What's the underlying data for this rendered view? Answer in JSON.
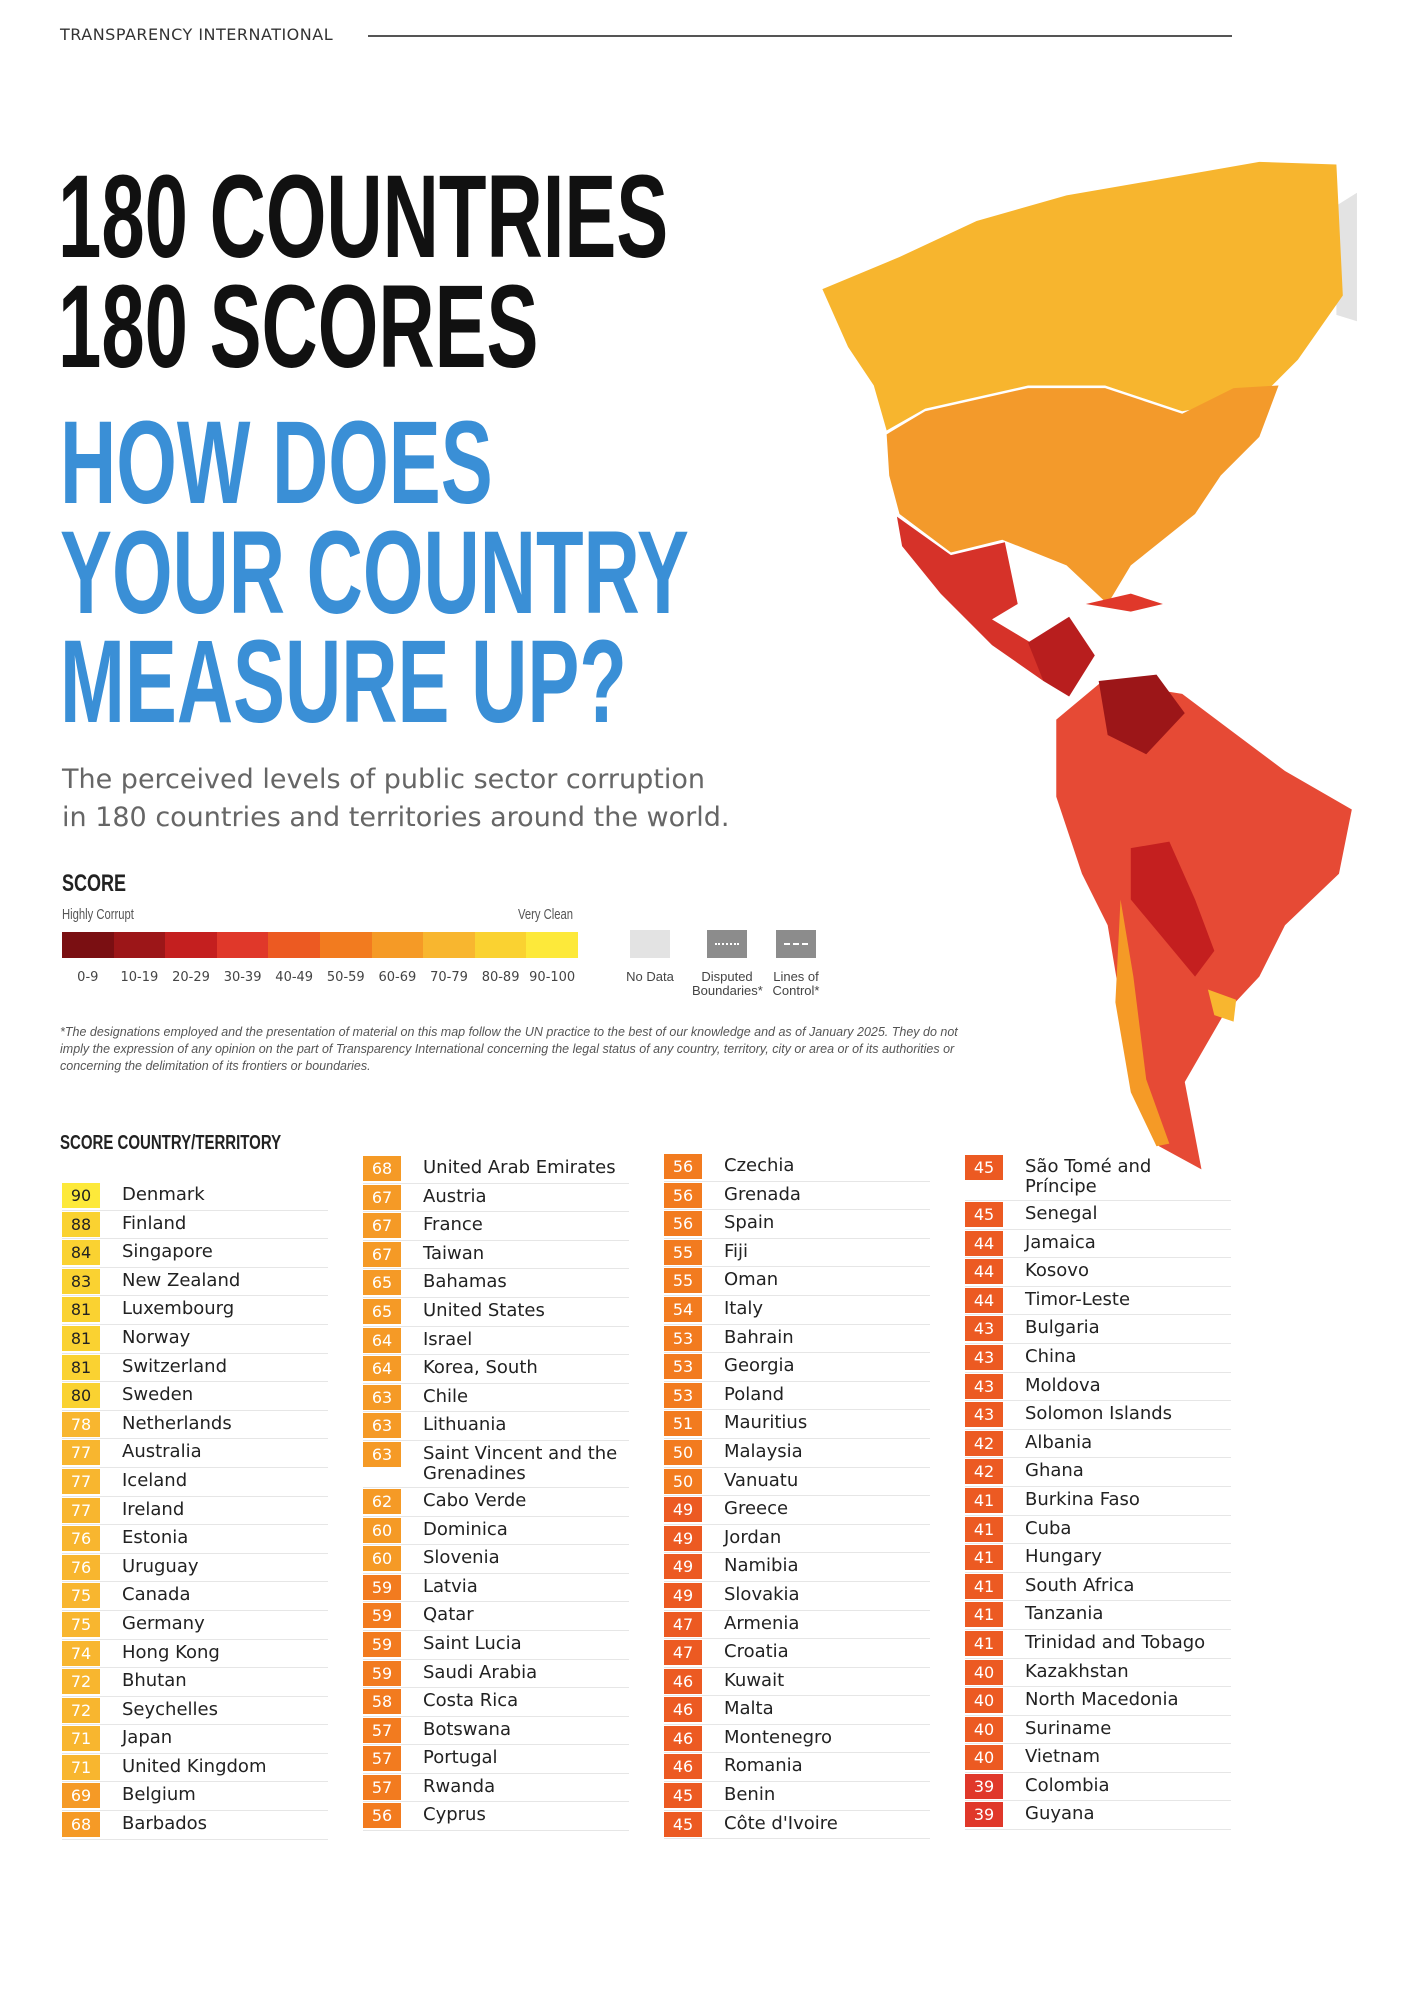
{
  "header": {
    "org": "TRANSPARENCY INTERNATIONAL"
  },
  "title": {
    "line1": "180 COUNTRIES",
    "line2": "180 SCORES"
  },
  "headline": [
    "HOW DOES",
    "YOUR COUNTRY",
    "MEASURE UP?"
  ],
  "subtitle": [
    "The perceived levels of public sector corruption",
    "in 180 countries and territories around the world."
  ],
  "legend": {
    "title": "SCORE",
    "low": "Highly Corrupt",
    "high": "Very Clean",
    "bins": [
      {
        "label": "0-9",
        "color": "#7a0f12"
      },
      {
        "label": "10-19",
        "color": "#9c1618"
      },
      {
        "label": "20-29",
        "color": "#c41f1f"
      },
      {
        "label": "30-39",
        "color": "#e0382a"
      },
      {
        "label": "40-49",
        "color": "#ec5a22"
      },
      {
        "label": "50-59",
        "color": "#f27b1f"
      },
      {
        "label": "60-69",
        "color": "#f59a26"
      },
      {
        "label": "70-79",
        "color": "#f8b62f"
      },
      {
        "label": "80-89",
        "color": "#fad231"
      },
      {
        "label": "90-100",
        "color": "#fde93a"
      }
    ],
    "extra": [
      {
        "label": "No Data",
        "color": "#e3e3e3"
      },
      {
        "label": "Disputed Boundaries*",
        "color": "#8c8c8c"
      },
      {
        "label": "Lines of Control*",
        "color": "#8c8c8c"
      }
    ]
  },
  "disclaimer": "*The designations employed and the presentation of material on this map follow the UN practice to the best of our knowledge and as of January 2025. They do not imply the expression of any opinion on the part of Transparency International concerning the legal status of any country, territory, city or area or of its authorities or concerning the delimitation of its frontiers or boundaries.",
  "table": {
    "header": "SCORE COUNTRY/TERRITORY",
    "columns": [
      [
        {
          "score": 90,
          "country": "Denmark"
        },
        {
          "score": 88,
          "country": "Finland"
        },
        {
          "score": 84,
          "country": "Singapore"
        },
        {
          "score": 83,
          "country": "New Zealand"
        },
        {
          "score": 81,
          "country": "Luxembourg"
        },
        {
          "score": 81,
          "country": "Norway"
        },
        {
          "score": 81,
          "country": "Switzerland"
        },
        {
          "score": 80,
          "country": "Sweden"
        },
        {
          "score": 78,
          "country": "Netherlands"
        },
        {
          "score": 77,
          "country": "Australia"
        },
        {
          "score": 77,
          "country": "Iceland"
        },
        {
          "score": 77,
          "country": "Ireland"
        },
        {
          "score": 76,
          "country": "Estonia"
        },
        {
          "score": 76,
          "country": "Uruguay"
        },
        {
          "score": 75,
          "country": "Canada"
        },
        {
          "score": 75,
          "country": "Germany"
        },
        {
          "score": 74,
          "country": "Hong Kong"
        },
        {
          "score": 72,
          "country": "Bhutan"
        },
        {
          "score": 72,
          "country": "Seychelles"
        },
        {
          "score": 71,
          "country": "Japan"
        },
        {
          "score": 71,
          "country": "United Kingdom"
        },
        {
          "score": 69,
          "country": "Belgium"
        },
        {
          "score": 68,
          "country": "Barbados"
        }
      ],
      [
        {
          "score": 68,
          "country": "United Arab Emirates"
        },
        {
          "score": 67,
          "country": "Austria"
        },
        {
          "score": 67,
          "country": "France"
        },
        {
          "score": 67,
          "country": "Taiwan"
        },
        {
          "score": 65,
          "country": "Bahamas"
        },
        {
          "score": 65,
          "country": "United States"
        },
        {
          "score": 64,
          "country": "Israel"
        },
        {
          "score": 64,
          "country": "Korea, South"
        },
        {
          "score": 63,
          "country": "Chile"
        },
        {
          "score": 63,
          "country": "Lithuania"
        },
        {
          "score": 63,
          "country": "Saint Vincent and the Grenadines"
        },
        {
          "score": 62,
          "country": "Cabo Verde"
        },
        {
          "score": 60,
          "country": "Dominica"
        },
        {
          "score": 60,
          "country": "Slovenia"
        },
        {
          "score": 59,
          "country": "Latvia"
        },
        {
          "score": 59,
          "country": "Qatar"
        },
        {
          "score": 59,
          "country": "Saint Lucia"
        },
        {
          "score": 59,
          "country": "Saudi Arabia"
        },
        {
          "score": 58,
          "country": "Costa Rica"
        },
        {
          "score": 57,
          "country": "Botswana"
        },
        {
          "score": 57,
          "country": "Portugal"
        },
        {
          "score": 57,
          "country": "Rwanda"
        },
        {
          "score": 56,
          "country": "Cyprus"
        }
      ],
      [
        {
          "score": 56,
          "country": "Czechia"
        },
        {
          "score": 56,
          "country": "Grenada"
        },
        {
          "score": 56,
          "country": "Spain"
        },
        {
          "score": 55,
          "country": "Fiji"
        },
        {
          "score": 55,
          "country": "Oman"
        },
        {
          "score": 54,
          "country": "Italy"
        },
        {
          "score": 53,
          "country": "Bahrain"
        },
        {
          "score": 53,
          "country": "Georgia"
        },
        {
          "score": 53,
          "country": "Poland"
        },
        {
          "score": 51,
          "country": "Mauritius"
        },
        {
          "score": 50,
          "country": "Malaysia"
        },
        {
          "score": 50,
          "country": "Vanuatu"
        },
        {
          "score": 49,
          "country": "Greece"
        },
        {
          "score": 49,
          "country": "Jordan"
        },
        {
          "score": 49,
          "country": "Namibia"
        },
        {
          "score": 49,
          "country": "Slovakia"
        },
        {
          "score": 47,
          "country": "Armenia"
        },
        {
          "score": 47,
          "country": "Croatia"
        },
        {
          "score": 46,
          "country": "Kuwait"
        },
        {
          "score": 46,
          "country": "Malta"
        },
        {
          "score": 46,
          "country": "Montenegro"
        },
        {
          "score": 46,
          "country": "Romania"
        },
        {
          "score": 45,
          "country": "Benin"
        },
        {
          "score": 45,
          "country": "Côte d'Ivoire"
        }
      ],
      [
        {
          "score": 45,
          "country": "São Tomé and Príncipe"
        },
        {
          "score": 45,
          "country": "Senegal"
        },
        {
          "score": 44,
          "country": "Jamaica"
        },
        {
          "score": 44,
          "country": "Kosovo"
        },
        {
          "score": 44,
          "country": "Timor-Leste"
        },
        {
          "score": 43,
          "country": "Bulgaria"
        },
        {
          "score": 43,
          "country": "China"
        },
        {
          "score": 43,
          "country": "Moldova"
        },
        {
          "score": 43,
          "country": "Solomon Islands"
        },
        {
          "score": 42,
          "country": "Albania"
        },
        {
          "score": 42,
          "country": "Ghana"
        },
        {
          "score": 41,
          "country": "Burkina Faso"
        },
        {
          "score": 41,
          "country": "Cuba"
        },
        {
          "score": 41,
          "country": "Hungary"
        },
        {
          "score": 41,
          "country": "South Africa"
        },
        {
          "score": 41,
          "country": "Tanzania"
        },
        {
          "score": 41,
          "country": "Trinidad and Tobago"
        },
        {
          "score": 40,
          "country": "Kazakhstan"
        },
        {
          "score": 40,
          "country": "North Macedonia"
        },
        {
          "score": 40,
          "country": "Suriname"
        },
        {
          "score": 40,
          "country": "Vietnam"
        },
        {
          "score": 39,
          "country": "Colombia"
        },
        {
          "score": 39,
          "country": "Guyana"
        }
      ]
    ]
  }
}
